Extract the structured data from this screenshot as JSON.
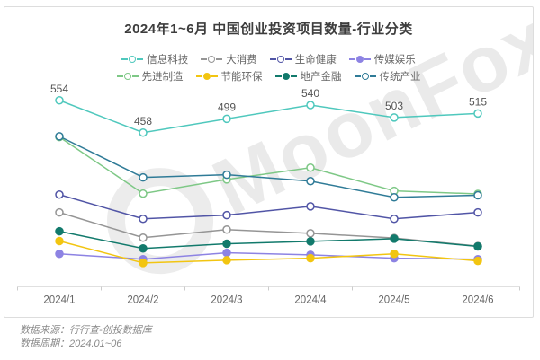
{
  "title": "2024年1~6月 中国创业投资项目数量-行业分类",
  "watermark": "MoonFox",
  "footer": {
    "source": "数据来源：行行查-创投数据库",
    "period": "数据周期：2024.01~06"
  },
  "chart_data": {
    "type": "line",
    "title": "2024年1~6月 中国创业投资项目数量-行业分类",
    "categories": [
      "2024/1",
      "2024/2",
      "2024/3",
      "2024/4",
      "2024/5",
      "2024/6"
    ],
    "series": [
      {
        "name": "信息科技",
        "color": "#4fc8bd",
        "marker": "open",
        "show_labels": true,
        "values": [
          554,
          458,
          499,
          540,
          503,
          515
        ]
      },
      {
        "name": "大消费",
        "color": "#959595",
        "marker": "open",
        "show_labels": false,
        "values": [
          221,
          146,
          170,
          159,
          145,
          121
        ]
      },
      {
        "name": "生命健康",
        "color": "#5155a6",
        "marker": "open",
        "show_labels": false,
        "values": [
          274,
          202,
          213,
          239,
          202,
          221
        ]
      },
      {
        "name": "传媒娱乐",
        "color": "#8d83e3",
        "marker": "filled",
        "show_labels": false,
        "values": [
          98,
          82,
          101,
          95,
          85,
          82
        ]
      },
      {
        "name": "先进制造",
        "color": "#7ec886",
        "marker": "open",
        "show_labels": false,
        "values": [
          445,
          277,
          319,
          354,
          285,
          276
        ]
      },
      {
        "name": "节能环保",
        "color": "#f2c511",
        "marker": "filled",
        "show_labels": false,
        "values": [
          136,
          71,
          79,
          85,
          98,
          77
        ]
      },
      {
        "name": "地产金融",
        "color": "#127a6c",
        "marker": "filled",
        "show_labels": false,
        "values": [
          165,
          114,
          128,
          135,
          143,
          120
        ]
      },
      {
        "name": "传统产业",
        "color": "#2f7b97",
        "marker": "open",
        "show_labels": false,
        "values": [
          447,
          325,
          333,
          314,
          266,
          272
        ]
      }
    ],
    "xlabel": "",
    "ylabel": "",
    "ylim": [
      0,
      620
    ],
    "grid": false,
    "legend_position": "top",
    "legend_rows": 2,
    "axis_color": "#e0e0e0",
    "tick_color": "#cccccc",
    "label_color": "#666666",
    "value_label_color": "#555555"
  }
}
